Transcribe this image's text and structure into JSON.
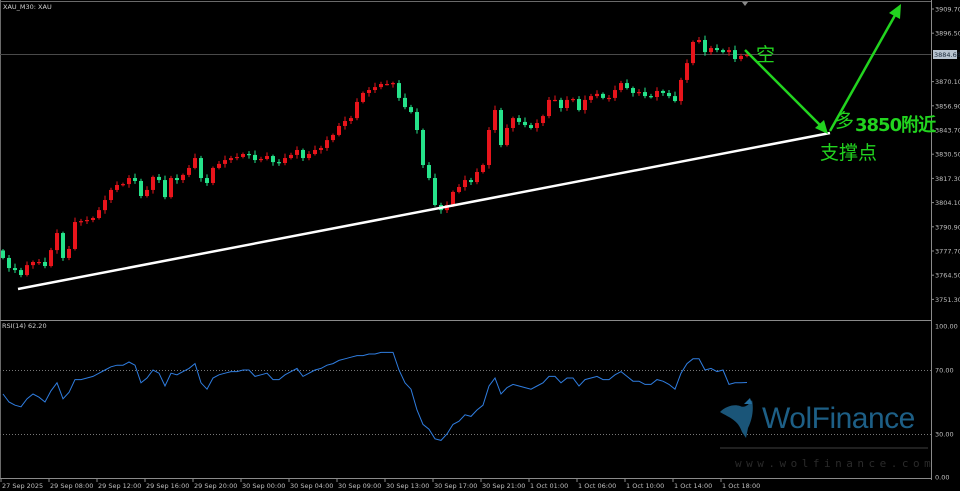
{
  "header": {
    "symbol_label": "XAU_M30:  XAU"
  },
  "rsi_panel": {
    "label": "RSI(14) 62.20"
  },
  "price_axis": {
    "ticks": [
      "3909.70",
      "3896.50",
      "3870.10",
      "3856.90",
      "3843.70",
      "3830.50",
      "3817.30",
      "3804.10",
      "3790.90",
      "3777.70",
      "3764.50",
      "3751.30"
    ],
    "current_price": "3884.68"
  },
  "rsi_axis": {
    "ticks": [
      "100.00",
      "70.00",
      "30.00",
      "0.00"
    ]
  },
  "time_axis": {
    "ticks": [
      "27 Sep 2025",
      "29 Sep 08:00",
      "29 Sep 12:00",
      "29 Sep 16:00",
      "29 Sep 20:00",
      "30 Sep 00:00",
      "30 Sep 04:00",
      "30 Sep 09:00",
      "30 Sep 13:00",
      "30 Sep 17:00",
      "30 Sep 21:00",
      "1 Oct 01:00",
      "1 Oct 06:00",
      "1 Oct 10:00",
      "1 Oct 14:00",
      "1 Oct 18:00"
    ]
  },
  "annotations": {
    "short": "空",
    "long": "多",
    "level": "3850附近",
    "support": "支撑点"
  },
  "watermark": {
    "name": "WolFinance",
    "url": "www.wolfinance.com"
  },
  "colors": {
    "up": "#e8141b",
    "down": "#25e38a",
    "rsi_line": "#2f7de0",
    "trendline": "#ffffff",
    "annotation": "#22d41f",
    "background": "#000000"
  },
  "chart_data": {
    "type": "candlestick",
    "symbol": "XAU",
    "timeframe": "M30",
    "ylim": [
      3745,
      3912
    ],
    "first_open": 3778.0,
    "close": [
      3773.9,
      3768.4,
      3767.3,
      3764.6,
      3770.0,
      3771.7,
      3771.7,
      3769.5,
      3778.2,
      3787.5,
      3773.9,
      3778.8,
      3793.5,
      3794.0,
      3794.6,
      3795.7,
      3800.0,
      3805.5,
      3811.0,
      3813.7,
      3814.2,
      3817.5,
      3815.9,
      3807.7,
      3811.0,
      3818.1,
      3816.4,
      3807.1,
      3817.5,
      3816.4,
      3819.2,
      3823.0,
      3828.4,
      3817.5,
      3814.8,
      3823.0,
      3825.2,
      3827.3,
      3828.4,
      3829.0,
      3830.6,
      3830.1,
      3827.3,
      3827.9,
      3829.5,
      3826.2,
      3825.7,
      3828.4,
      3830.1,
      3832.8,
      3828.4,
      3830.6,
      3832.8,
      3833.9,
      3838.2,
      3841.0,
      3845.9,
      3848.6,
      3850.2,
      3859.0,
      3863.9,
      3865.5,
      3867.1,
      3868.8,
      3868.8,
      3869.3,
      3861.2,
      3856.2,
      3853.5,
      3843.7,
      3824.6,
      3817.5,
      3802.8,
      3800.0,
      3802.8,
      3809.9,
      3812.6,
      3816.4,
      3815.3,
      3820.8,
      3824.6,
      3843.7,
      3854.6,
      3835.5,
      3844.8,
      3850.2,
      3848.1,
      3846.4,
      3844.8,
      3847.5,
      3851.3,
      3860.1,
      3860.1,
      3855.7,
      3860.1,
      3860.6,
      3854.6,
      3860.1,
      3862.2,
      3863.4,
      3861.2,
      3861.2,
      3865.5,
      3869.3,
      3866.6,
      3863.9,
      3864.4,
      3862.2,
      3861.7,
      3865.0,
      3863.9,
      3862.2,
      3859.5,
      3871.0,
      3880.2,
      3891.7,
      3892.8,
      3886.2,
      3888.4,
      3887.3,
      3886.2,
      3887.3,
      3882.4,
      3884.1,
      3884.68
    ],
    "rsi": {
      "period": 14,
      "ylim": [
        0,
        100
      ],
      "levels": [
        70,
        30
      ],
      "values": [
        55,
        50,
        48,
        47,
        52,
        55,
        53,
        50,
        57,
        62,
        52,
        56,
        64,
        64,
        65,
        66,
        68,
        70,
        72,
        73,
        73,
        75,
        73,
        62,
        65,
        70,
        68,
        60,
        68,
        67,
        69,
        71,
        74,
        62,
        58,
        65,
        67,
        68,
        69,
        69,
        70,
        70,
        66,
        67,
        68,
        64,
        64,
        67,
        69,
        71,
        66,
        68,
        70,
        71,
        73,
        74,
        76,
        77,
        78,
        79,
        79,
        80,
        80,
        81,
        81,
        81,
        70,
        62,
        58,
        45,
        36,
        33,
        27,
        26,
        30,
        36,
        38,
        42,
        41,
        45,
        48,
        60,
        65,
        55,
        59,
        61,
        60,
        59,
        58,
        60,
        62,
        66,
        66,
        62,
        65,
        65,
        60,
        64,
        65,
        66,
        64,
        64,
        67,
        69,
        66,
        63,
        63,
        61,
        61,
        64,
        63,
        61,
        58,
        68,
        74,
        77,
        77,
        70,
        71,
        69,
        70,
        61,
        62,
        62,
        62.2
      ]
    }
  }
}
